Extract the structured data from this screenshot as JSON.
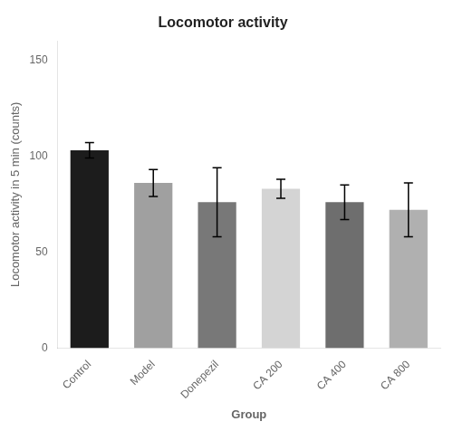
{
  "chart_data": {
    "type": "bar",
    "title": "Locomotor activity",
    "xlabel": "Group",
    "ylabel": "Locomotor activity in 5 min (counts)",
    "categories": [
      "Control",
      "Model",
      "Donepezil",
      "CA 200",
      "CA 400",
      "CA 800"
    ],
    "values": [
      103,
      86,
      76,
      83,
      76,
      72
    ],
    "errors": [
      4,
      7,
      18,
      5,
      9,
      14
    ],
    "colors": [
      "#1c1c1c",
      "#a0a0a0",
      "#787878",
      "#d4d4d4",
      "#6e6e6e",
      "#b0b0b0"
    ],
    "ylim": [
      0,
      160
    ],
    "yticks": [
      0,
      50,
      100,
      150
    ],
    "grid": false
  }
}
